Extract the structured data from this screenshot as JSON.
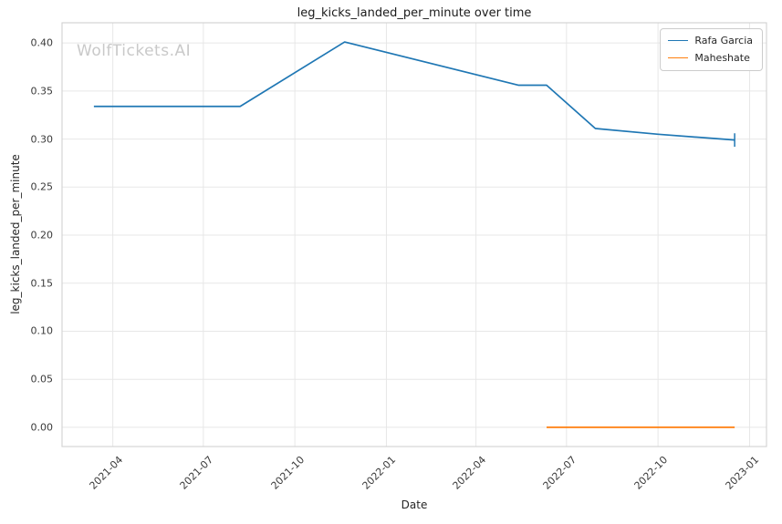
{
  "watermark": "WolfTickets.AI",
  "chart_data": {
    "type": "line",
    "title": "leg_kicks_landed_per_minute over time",
    "xlabel": "Date",
    "ylabel": "leg_kicks_landed_per_minute",
    "grid": true,
    "legend_position": "upper right",
    "x_tick_labels": [
      "2021-04",
      "2021-07",
      "2021-10",
      "2022-01",
      "2022-04",
      "2022-07",
      "2022-10",
      "2023-01"
    ],
    "x_tick_dates": [
      "2021-04-01",
      "2021-07-01",
      "2021-10-01",
      "2022-01-01",
      "2022-04-01",
      "2022-07-01",
      "2022-10-01",
      "2023-01-01"
    ],
    "y_ticks": [
      0.0,
      0.05,
      0.1,
      0.15,
      0.2,
      0.25,
      0.3,
      0.35,
      0.4
    ],
    "xlim": [
      "2021-02-09",
      "2023-01-18"
    ],
    "ylim": [
      -0.02,
      0.421
    ],
    "colors": {
      "grid": "#e7e7e7",
      "spine": "#d4d4d4",
      "tick_text": "#3a3a3a"
    },
    "series": [
      {
        "name": "Rafa Garcia",
        "color": "#1f77b4",
        "x": [
          "2021-03-13",
          "2021-08-07",
          "2021-11-20",
          "2022-05-14",
          "2022-06-11",
          "2022-07-30",
          "2022-10-01",
          "2022-12-17"
        ],
        "y": [
          0.334,
          0.334,
          0.401,
          0.356,
          0.356,
          0.311,
          0.305,
          0.299
        ],
        "end_cap": {
          "x": "2022-12-17",
          "y_low": 0.292,
          "y_high": 0.306
        }
      },
      {
        "name": "Maheshate",
        "color": "#ff7f0e",
        "x": [
          "2022-06-11",
          "2022-12-17"
        ],
        "y": [
          0.0,
          0.0
        ]
      }
    ]
  }
}
